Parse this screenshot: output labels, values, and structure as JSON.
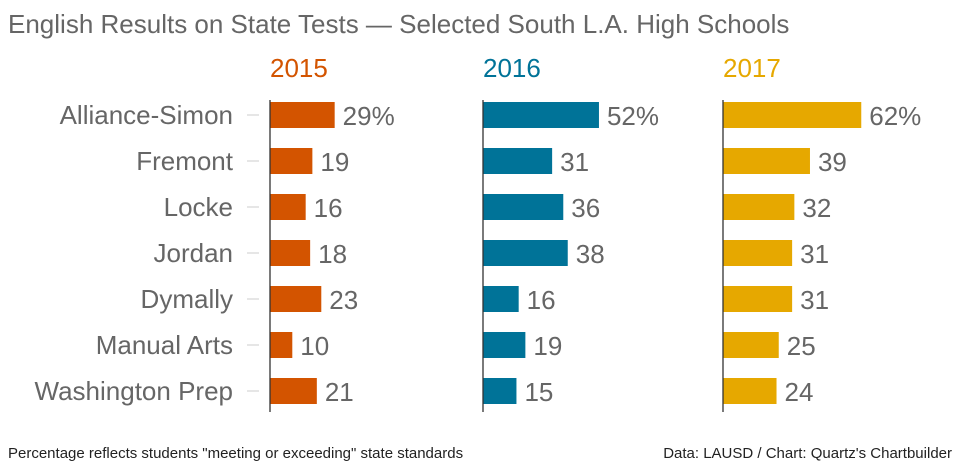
{
  "chart_data": {
    "type": "bar",
    "title": "English Results on State Tests — Selected South L.A. High Schools",
    "categories": [
      "Alliance-Simon",
      "Fremont",
      "Locke",
      "Jordan",
      "Dymally",
      "Manual Arts",
      "Washington Prep"
    ],
    "series": [
      {
        "name": "2015",
        "color": "#d35400",
        "values": [
          29,
          19,
          16,
          18,
          23,
          10,
          21
        ]
      },
      {
        "name": "2016",
        "color": "#007398",
        "values": [
          52,
          31,
          36,
          38,
          16,
          19,
          15
        ]
      },
      {
        "name": "2017",
        "color": "#e6a800",
        "values": [
          62,
          39,
          32,
          31,
          31,
          25,
          24
        ]
      }
    ],
    "value_suffix_first_row": "%",
    "xlabel": "",
    "ylabel": "",
    "grid": false,
    "footnote": "Percentage reflects students \"meeting or exceeding\" state standards",
    "source": "Data: LAUSD / Chart: Quartz's Chartbuilder"
  }
}
